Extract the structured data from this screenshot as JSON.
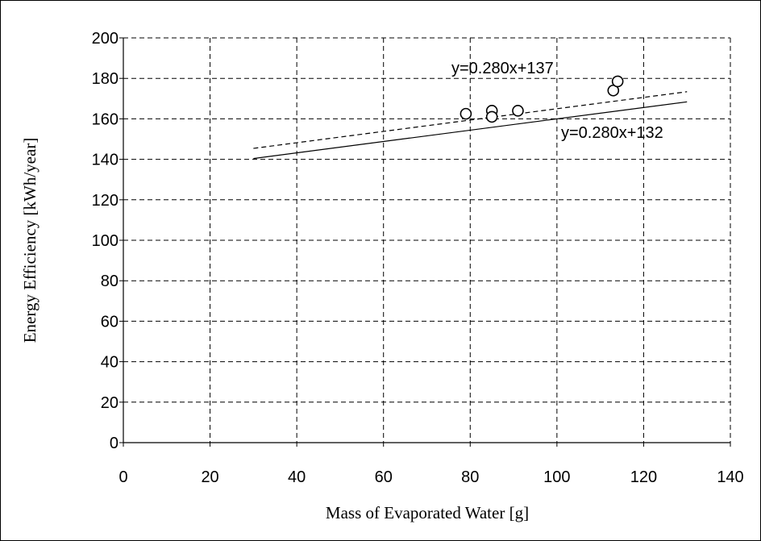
{
  "chart_data": {
    "type": "scatter",
    "title": "",
    "xlabel": "Mass of Evaporated Water [g]",
    "ylabel": "Energy Efficiency [kWh/year]",
    "xlim": [
      0,
      140
    ],
    "ylim": [
      0,
      200
    ],
    "x_ticks": [
      "0",
      "20",
      "40",
      "60",
      "80",
      "100",
      "120",
      "140"
    ],
    "y_ticks": [
      "0",
      "20",
      "40",
      "60",
      "80",
      "100",
      "120",
      "140",
      "160",
      "180",
      "200"
    ],
    "grid": true,
    "points": [
      {
        "x": 79,
        "y": 162.5
      },
      {
        "x": 85,
        "y": 164
      },
      {
        "x": 85,
        "y": 161
      },
      {
        "x": 91,
        "y": 164
      },
      {
        "x": 113,
        "y": 174
      },
      {
        "x": 114,
        "y": 178.5
      }
    ],
    "lines": [
      {
        "equation": "y=0.280x+137",
        "slope": 0.28,
        "intercept": 137,
        "x_range": [
          30,
          130
        ],
        "style": "dashed"
      },
      {
        "equation": "y=0.280x+132",
        "slope": 0.28,
        "intercept": 132,
        "x_range": [
          30,
          130
        ],
        "style": "solid"
      }
    ]
  }
}
